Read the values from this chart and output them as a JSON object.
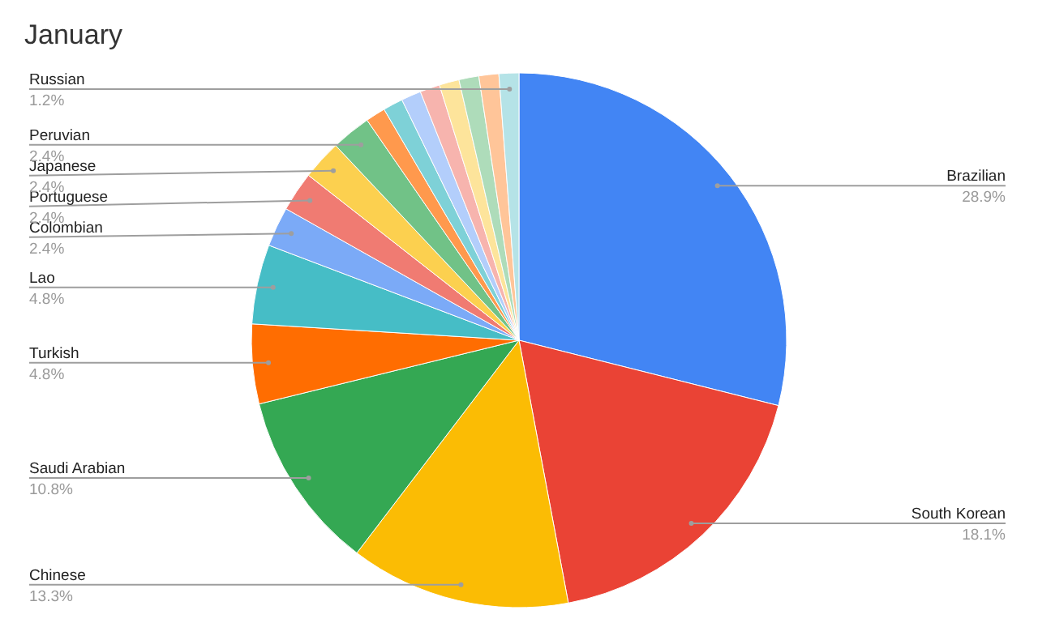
{
  "chart_data": {
    "type": "pie",
    "title": "January",
    "categories": [
      "Brazilian",
      "South Korean",
      "Chinese",
      "Saudi Arabian",
      "Turkish",
      "Lao",
      "Colombian",
      "Portuguese",
      "Japanese",
      "Peruvian",
      null,
      null,
      null,
      null,
      null,
      null,
      null,
      "Russian"
    ],
    "values": [
      28.9,
      18.1,
      13.3,
      10.8,
      4.8,
      4.8,
      2.4,
      2.4,
      2.4,
      2.4,
      1.2,
      1.2,
      1.2,
      1.2,
      1.2,
      1.2,
      1.2,
      1.2
    ],
    "value_labels": [
      "28.9%",
      "18.1%",
      "13.3%",
      "10.8%",
      "4.8%",
      "4.8%",
      "2.4%",
      "2.4%",
      "2.4%",
      "2.4%",
      null,
      null,
      null,
      null,
      null,
      null,
      null,
      "1.2%"
    ],
    "colors": [
      "#4285f4",
      "#ea4335",
      "#fbbc04",
      "#34a853",
      "#ff6d01",
      "#46bdc6",
      "#7baaf7",
      "#f07b72",
      "#fcd04f",
      "#71c287",
      "#ff994d",
      "#7ed1d7",
      "#b3cefb",
      "#f7b4ae",
      "#fde49b",
      "#aedcba",
      "#ffc599",
      "#b5e3e7"
    ]
  }
}
